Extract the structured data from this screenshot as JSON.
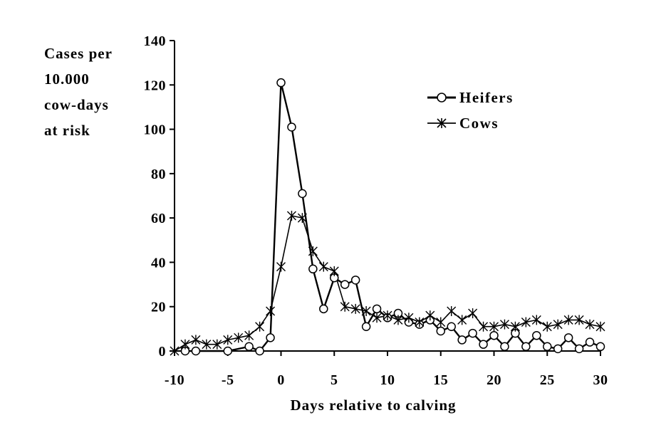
{
  "chart_data": {
    "type": "line",
    "title": "",
    "xlabel": "Days relative to calving",
    "ylabel_lines": [
      "Cases per",
      "10.000",
      "cow-days",
      "at risk"
    ],
    "xlim": [
      -10,
      30
    ],
    "ylim": [
      0,
      140
    ],
    "x_ticks": [
      -10,
      -5,
      0,
      5,
      10,
      15,
      20,
      25,
      30
    ],
    "y_ticks": [
      0,
      20,
      40,
      60,
      80,
      100,
      120,
      140
    ],
    "grid": false,
    "legend_position": "top-right",
    "series": [
      {
        "name": "Heifers",
        "marker": "circle",
        "color": "#000000",
        "x": [
          -9,
          -8,
          -5,
          -3,
          -2,
          -1,
          0,
          1,
          2,
          3,
          4,
          5,
          6,
          7,
          8,
          9,
          10,
          11,
          12,
          13,
          14,
          15,
          16,
          17,
          18,
          19,
          20,
          21,
          22,
          23,
          24,
          25,
          26,
          27,
          28,
          29,
          30
        ],
        "values": [
          0,
          0,
          0,
          2,
          0,
          6,
          121,
          101,
          71,
          37,
          19,
          33,
          30,
          32,
          11,
          19,
          15,
          17,
          13,
          12,
          14,
          9,
          11,
          5,
          8,
          3,
          7,
          2,
          8,
          2,
          7,
          2,
          1,
          6,
          1,
          4,
          2
        ]
      },
      {
        "name": "Cows",
        "marker": "star",
        "color": "#000000",
        "x": [
          -10,
          -9,
          -8,
          -7,
          -6,
          -5,
          -4,
          -3,
          -2,
          -1,
          0,
          1,
          2,
          3,
          4,
          5,
          6,
          7,
          8,
          9,
          10,
          11,
          12,
          13,
          14,
          15,
          16,
          17,
          18,
          19,
          20,
          21,
          22,
          23,
          24,
          25,
          26,
          27,
          28,
          29,
          30
        ],
        "values": [
          0,
          3,
          5,
          3,
          3,
          5,
          6,
          7,
          11,
          18,
          38,
          61,
          60,
          45,
          38,
          36,
          20,
          19,
          18,
          15,
          16,
          14,
          15,
          13,
          16,
          13,
          18,
          14,
          17,
          11,
          11,
          12,
          11,
          13,
          14,
          11,
          12,
          14,
          14,
          12,
          11
        ]
      }
    ]
  }
}
